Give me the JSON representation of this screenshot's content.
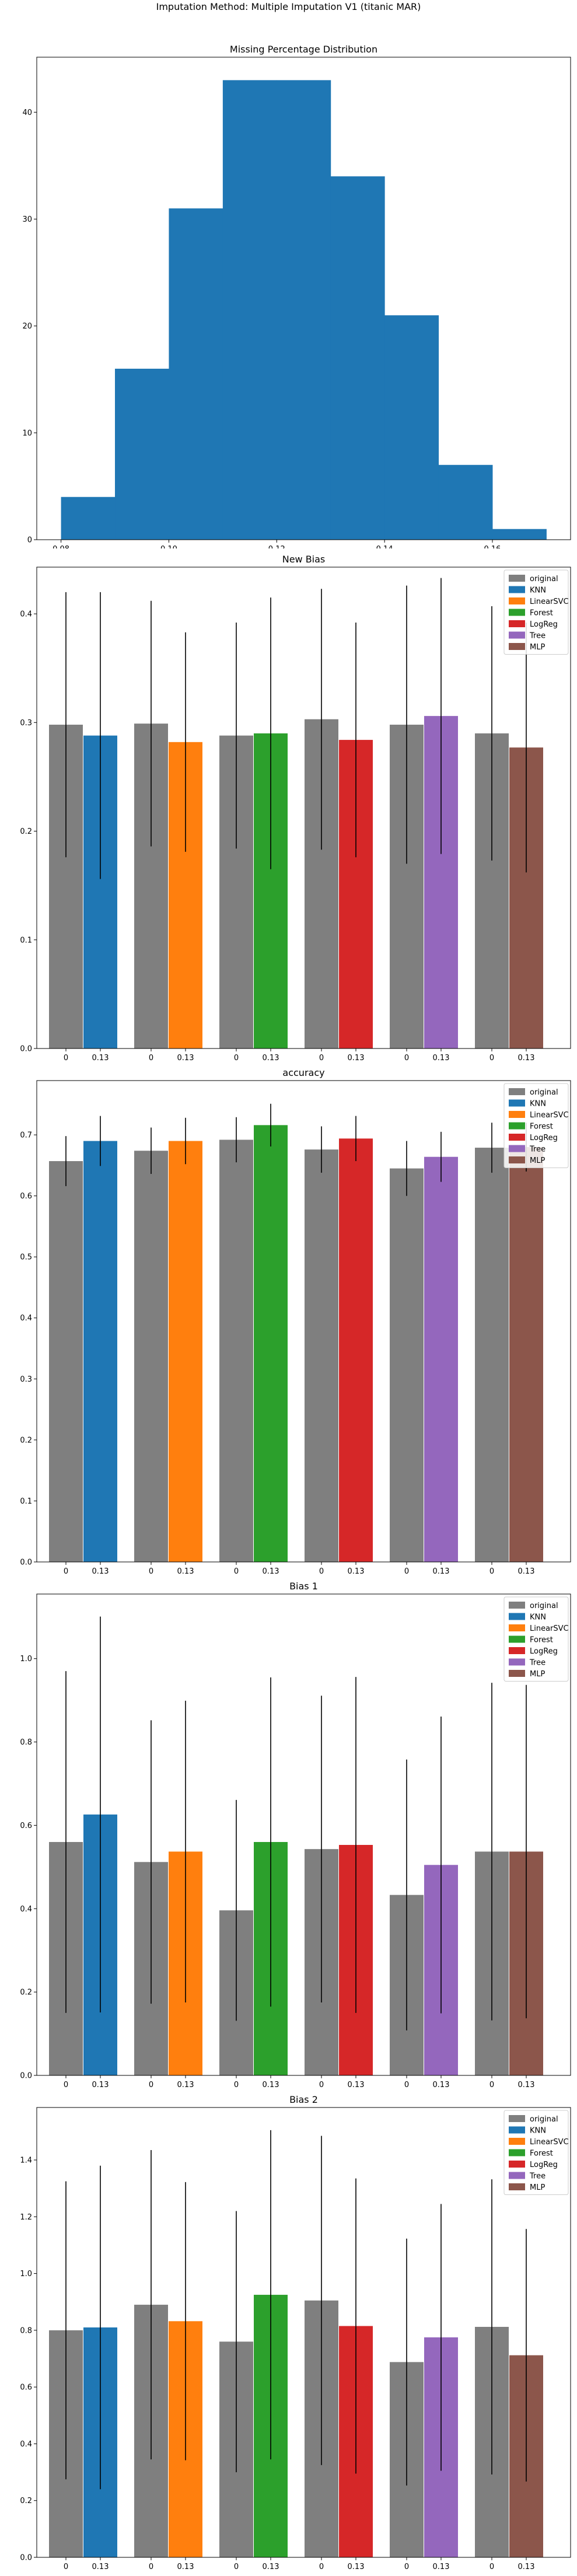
{
  "suptitle": "Imputation Method: Multiple Imputation V1 (titanic MAR)",
  "colors": {
    "hist": "#1f77b4",
    "original": "#7f7f7f",
    "KNN": "#1f77b4",
    "LinearSVC": "#ff7f0e",
    "Forest": "#2ca02c",
    "LogReg": "#d62728",
    "Tree": "#9467bd",
    "MLP": "#8c564b"
  },
  "chart_data": [
    {
      "type": "bar",
      "subtype": "histogram",
      "title": "Missing Percentage Distribution",
      "bins": [
        0.08,
        0.09,
        0.1,
        0.11,
        0.12,
        0.13,
        0.14,
        0.15,
        0.16,
        0.17
      ],
      "counts": [
        4,
        16,
        31,
        43,
        43,
        34,
        21,
        7,
        1
      ],
      "xlim": [
        0.0755,
        0.1745
      ],
      "ylim": [
        0,
        45.15
      ],
      "xticks": [
        "0.08",
        "0.10",
        "0.12",
        "0.14",
        "0.16"
      ],
      "yticks": [
        "0",
        "10",
        "20",
        "30",
        "40"
      ]
    },
    {
      "type": "bar",
      "title": "New Bias",
      "categories": [
        "0",
        "0.13",
        "0",
        "0.13",
        "0",
        "0.13",
        "0",
        "0.13",
        "0",
        "0.13",
        "0",
        "0.13"
      ],
      "groups": [
        {
          "model": "KNN",
          "original": 0.298,
          "original_err": 0.122,
          "imputed": 0.288,
          "imputed_err": 0.132
        },
        {
          "model": "LinearSVC",
          "original": 0.299,
          "original_err": 0.113,
          "imputed": 0.282,
          "imputed_err": 0.101
        },
        {
          "model": "Forest",
          "original": 0.288,
          "original_err": 0.104,
          "imputed": 0.29,
          "imputed_err": 0.125
        },
        {
          "model": "LogReg",
          "original": 0.303,
          "original_err": 0.12,
          "imputed": 0.284,
          "imputed_err": 0.108
        },
        {
          "model": "Tree",
          "original": 0.298,
          "original_err": 0.128,
          "imputed": 0.306,
          "imputed_err": 0.127
        },
        {
          "model": "MLP",
          "original": 0.29,
          "original_err": 0.117,
          "imputed": 0.277,
          "imputed_err": 0.115
        }
      ],
      "ylim": [
        0,
        0.443
      ],
      "yticks": [
        "0.0",
        "0.1",
        "0.2",
        "0.3",
        "0.4"
      ],
      "legend": [
        "original",
        "KNN",
        "LinearSVC",
        "Forest",
        "LogReg",
        "Tree",
        "MLP"
      ],
      "legend_position": "top-right"
    },
    {
      "type": "bar",
      "title": "accuracy",
      "categories": [
        "0",
        "0.13",
        "0",
        "0.13",
        "0",
        "0.13",
        "0",
        "0.13",
        "0",
        "0.13",
        "0",
        "0.13"
      ],
      "groups": [
        {
          "model": "KNN",
          "original": 0.657,
          "original_err": 0.041,
          "imputed": 0.69,
          "imputed_err": 0.041
        },
        {
          "model": "LinearSVC",
          "original": 0.674,
          "original_err": 0.038,
          "imputed": 0.69,
          "imputed_err": 0.038
        },
        {
          "model": "Forest",
          "original": 0.692,
          "original_err": 0.037,
          "imputed": 0.716,
          "imputed_err": 0.035
        },
        {
          "model": "LogReg",
          "original": 0.676,
          "original_err": 0.038,
          "imputed": 0.694,
          "imputed_err": 0.037
        },
        {
          "model": "Tree",
          "original": 0.645,
          "original_err": 0.045,
          "imputed": 0.664,
          "imputed_err": 0.041
        },
        {
          "model": "MLP",
          "original": 0.679,
          "original_err": 0.041,
          "imputed": 0.68,
          "imputed_err": 0.04
        }
      ],
      "ylim": [
        0,
        0.789
      ],
      "yticks": [
        "0.0",
        "0.1",
        "0.2",
        "0.3",
        "0.4",
        "0.5",
        "0.6",
        "0.7"
      ],
      "legend": [
        "original",
        "KNN",
        "LinearSVC",
        "Forest",
        "LogReg",
        "Tree",
        "MLP"
      ],
      "legend_position": "top-right"
    },
    {
      "type": "bar",
      "title": "Bias 1",
      "categories": [
        "0",
        "0.13",
        "0",
        "0.13",
        "0",
        "0.13",
        "0",
        "0.13",
        "0",
        "0.13",
        "0",
        "0.13"
      ],
      "groups": [
        {
          "model": "KNN",
          "original": 0.56,
          "original_err": 0.41,
          "imputed": 0.626,
          "imputed_err": 0.475
        },
        {
          "model": "LinearSVC",
          "original": 0.512,
          "original_err": 0.34,
          "imputed": 0.537,
          "imputed_err": 0.362
        },
        {
          "model": "Forest",
          "original": 0.396,
          "original_err": 0.265,
          "imputed": 0.56,
          "imputed_err": 0.395
        },
        {
          "model": "LogReg",
          "original": 0.543,
          "original_err": 0.368,
          "imputed": 0.553,
          "imputed_err": 0.403
        },
        {
          "model": "Tree",
          "original": 0.433,
          "original_err": 0.325,
          "imputed": 0.505,
          "imputed_err": 0.356
        },
        {
          "model": "MLP",
          "original": 0.537,
          "original_err": 0.405,
          "imputed": 0.537,
          "imputed_err": 0.4
        }
      ],
      "ylim": [
        0,
        1.155
      ],
      "yticks": [
        "0.0",
        "0.2",
        "0.4",
        "0.6",
        "0.8",
        "1.0"
      ],
      "legend": [
        "original",
        "KNN",
        "LinearSVC",
        "Forest",
        "LogReg",
        "Tree",
        "MLP"
      ],
      "legend_position": "top-right"
    },
    {
      "type": "bar",
      "title": "Bias 2",
      "categories": [
        "0",
        "0.13",
        "0",
        "0.13",
        "0",
        "0.13",
        "0",
        "0.13",
        "0",
        "0.13",
        "0",
        "0.13"
      ],
      "groups": [
        {
          "model": "KNN",
          "original": 0.8,
          "original_err": 0.525,
          "imputed": 0.81,
          "imputed_err": 0.57
        },
        {
          "model": "LinearSVC",
          "original": 0.89,
          "original_err": 0.545,
          "imputed": 0.832,
          "imputed_err": 0.49
        },
        {
          "model": "Forest",
          "original": 0.76,
          "original_err": 0.46,
          "imputed": 0.925,
          "imputed_err": 0.58
        },
        {
          "model": "LogReg",
          "original": 0.905,
          "original_err": 0.58,
          "imputed": 0.815,
          "imputed_err": 0.52
        },
        {
          "model": "Tree",
          "original": 0.688,
          "original_err": 0.435,
          "imputed": 0.775,
          "imputed_err": 0.47
        },
        {
          "model": "MLP",
          "original": 0.812,
          "original_err": 0.52,
          "imputed": 0.712,
          "imputed_err": 0.445
        }
      ],
      "ylim": [
        0,
        1.585
      ],
      "yticks": [
        "0.0",
        "0.2",
        "0.4",
        "0.6",
        "0.8",
        "1.0",
        "1.2",
        "1.4"
      ],
      "legend": [
        "original",
        "KNN",
        "LinearSVC",
        "Forest",
        "LogReg",
        "Tree",
        "MLP"
      ],
      "legend_position": "top-right"
    }
  ]
}
